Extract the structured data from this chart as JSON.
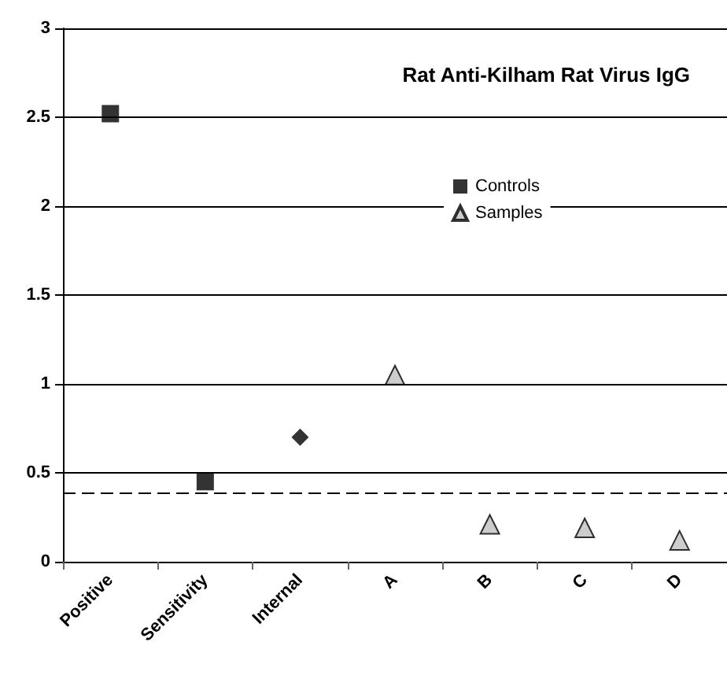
{
  "chart_data": {
    "type": "scatter",
    "title": "Rat Anti-Kilham Rat Virus IgG",
    "categories": [
      "Positive",
      "Sensitivity",
      "Internal",
      "A",
      "B",
      "C",
      "D"
    ],
    "series": [
      {
        "name": "Controls",
        "color": "#000000",
        "marker": "square",
        "values": [
          2.52,
          0.45,
          null,
          null,
          null,
          null,
          null
        ]
      },
      {
        "color": "#000000",
        "marker": "diamond",
        "values": [
          null,
          null,
          0.7,
          null,
          null,
          null,
          null
        ]
      },
      {
        "name": "Samples",
        "color": "#c0c0c0",
        "marker": "triangle",
        "values": [
          null,
          null,
          null,
          1.05,
          0.21,
          0.19,
          0.12
        ]
      }
    ],
    "ylim": [
      0,
      3
    ],
    "yticks": [
      0,
      0.5,
      1,
      1.5,
      2,
      2.5,
      3
    ],
    "grid": "y",
    "legend": "top",
    "ref_lines": [
      {
        "axis": "y",
        "value": 0.39,
        "line_style": "dashed",
        "color": "#000000"
      }
    ]
  }
}
